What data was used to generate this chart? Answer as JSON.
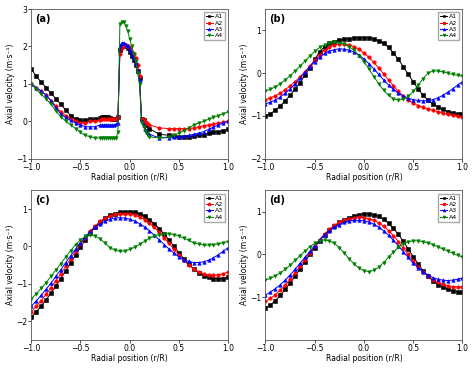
{
  "xlabel": "Radial position (r/R)",
  "ylabel": "Axial velocity (m·s⁻¹)",
  "legend_labels": [
    "A1",
    "A2",
    "A3",
    "A4"
  ],
  "colors": [
    "black",
    "red",
    "blue",
    "green"
  ],
  "markers": [
    "s",
    "o",
    "^",
    "v"
  ],
  "background": "#ffffff",
  "a_x": [
    -1.0,
    -0.95,
    -0.9,
    -0.85,
    -0.8,
    -0.75,
    -0.7,
    -0.65,
    -0.6,
    -0.55,
    -0.5,
    -0.45,
    -0.4,
    -0.35,
    -0.3,
    -0.28,
    -0.26,
    -0.24,
    -0.22,
    -0.2,
    -0.18,
    -0.16,
    -0.14,
    -0.12,
    -0.1,
    -0.08,
    -0.06,
    -0.04,
    -0.02,
    0.0,
    0.02,
    0.04,
    0.06,
    0.08,
    0.1,
    0.12,
    0.14,
    0.16,
    0.18,
    0.2,
    0.3,
    0.4,
    0.45,
    0.5,
    0.55,
    0.6,
    0.65,
    0.7,
    0.75,
    0.8,
    0.85,
    0.9,
    0.95,
    1.0
  ],
  "a_A1": [
    1.4,
    1.2,
    1.05,
    0.9,
    0.75,
    0.6,
    0.45,
    0.3,
    0.15,
    0.05,
    0.02,
    0.02,
    0.05,
    0.05,
    0.08,
    0.1,
    0.1,
    0.1,
    0.1,
    0.08,
    0.05,
    0.05,
    0.05,
    0.1,
    1.9,
    2.0,
    2.05,
    2.0,
    1.95,
    1.85,
    1.75,
    1.65,
    1.5,
    1.35,
    1.15,
    0.05,
    0.02,
    -0.05,
    -0.1,
    -0.2,
    -0.35,
    -0.38,
    -0.4,
    -0.42,
    -0.42,
    -0.42,
    -0.4,
    -0.38,
    -0.36,
    -0.33,
    -0.3,
    -0.28,
    -0.25,
    -0.22
  ],
  "a_A2": [
    1.0,
    0.9,
    0.8,
    0.7,
    0.55,
    0.4,
    0.25,
    0.15,
    0.05,
    0.0,
    -0.05,
    -0.05,
    0.0,
    0.0,
    0.02,
    0.05,
    0.05,
    0.05,
    0.05,
    0.05,
    0.05,
    0.05,
    0.05,
    0.1,
    1.8,
    1.95,
    2.0,
    2.05,
    2.0,
    1.95,
    1.85,
    1.8,
    1.7,
    1.5,
    1.2,
    0.05,
    0.02,
    -0.02,
    -0.05,
    -0.1,
    -0.18,
    -0.2,
    -0.2,
    -0.2,
    -0.2,
    -0.2,
    -0.18,
    -0.15,
    -0.12,
    -0.1,
    -0.08,
    -0.05,
    -0.03,
    -0.0
  ],
  "a_A3": [
    1.0,
    0.9,
    0.8,
    0.7,
    0.55,
    0.35,
    0.2,
    0.1,
    0.02,
    -0.05,
    -0.1,
    -0.15,
    -0.15,
    -0.15,
    -0.1,
    -0.1,
    -0.1,
    -0.1,
    -0.1,
    -0.1,
    -0.1,
    -0.1,
    -0.08,
    -0.05,
    2.0,
    2.1,
    2.1,
    2.05,
    2.0,
    1.9,
    1.8,
    1.7,
    1.55,
    1.35,
    1.1,
    0.0,
    -0.1,
    -0.2,
    -0.3,
    -0.35,
    -0.45,
    -0.44,
    -0.43,
    -0.42,
    -0.4,
    -0.38,
    -0.35,
    -0.32,
    -0.28,
    -0.22,
    -0.16,
    -0.1,
    -0.05,
    0.0
  ],
  "a_A4": [
    1.0,
    0.85,
    0.72,
    0.6,
    0.45,
    0.28,
    0.12,
    0.0,
    -0.1,
    -0.2,
    -0.3,
    -0.38,
    -0.42,
    -0.45,
    -0.45,
    -0.45,
    -0.45,
    -0.45,
    -0.45,
    -0.45,
    -0.45,
    -0.45,
    -0.45,
    -0.3,
    2.6,
    2.65,
    2.65,
    2.55,
    2.4,
    2.2,
    2.0,
    1.8,
    1.6,
    1.3,
    1.0,
    -0.05,
    -0.15,
    -0.25,
    -0.35,
    -0.42,
    -0.45,
    -0.42,
    -0.38,
    -0.32,
    -0.25,
    -0.18,
    -0.1,
    -0.05,
    -0.0,
    0.05,
    0.1,
    0.15,
    0.2,
    0.25
  ],
  "b_x": [
    -1.0,
    -0.95,
    -0.9,
    -0.85,
    -0.8,
    -0.75,
    -0.7,
    -0.65,
    -0.6,
    -0.55,
    -0.5,
    -0.45,
    -0.4,
    -0.35,
    -0.3,
    -0.25,
    -0.2,
    -0.15,
    -0.1,
    -0.05,
    0.0,
    0.05,
    0.1,
    0.15,
    0.2,
    0.25,
    0.3,
    0.35,
    0.4,
    0.45,
    0.5,
    0.55,
    0.6,
    0.65,
    0.7,
    0.75,
    0.8,
    0.85,
    0.9,
    0.95,
    1.0
  ],
  "b_A1": [
    -1.0,
    -0.95,
    -0.87,
    -0.77,
    -0.65,
    -0.52,
    -0.38,
    -0.22,
    -0.05,
    0.12,
    0.32,
    0.5,
    0.62,
    0.7,
    0.74,
    0.77,
    0.79,
    0.8,
    0.82,
    0.83,
    0.83,
    0.82,
    0.8,
    0.76,
    0.7,
    0.6,
    0.47,
    0.32,
    0.15,
    -0.03,
    -0.2,
    -0.37,
    -0.52,
    -0.63,
    -0.72,
    -0.79,
    -0.85,
    -0.9,
    -0.93,
    -0.95,
    -0.95
  ],
  "b_A2": [
    -0.62,
    -0.58,
    -0.53,
    -0.47,
    -0.39,
    -0.3,
    -0.2,
    -0.09,
    0.03,
    0.16,
    0.3,
    0.43,
    0.54,
    0.61,
    0.66,
    0.68,
    0.68,
    0.66,
    0.62,
    0.56,
    0.47,
    0.37,
    0.25,
    0.12,
    -0.02,
    -0.16,
    -0.3,
    -0.43,
    -0.54,
    -0.63,
    -0.7,
    -0.76,
    -0.8,
    -0.84,
    -0.87,
    -0.9,
    -0.93,
    -0.96,
    -0.99,
    -1.01,
    -1.02
  ],
  "b_A3": [
    -0.72,
    -0.68,
    -0.63,
    -0.56,
    -0.47,
    -0.37,
    -0.25,
    -0.12,
    0.02,
    0.15,
    0.27,
    0.38,
    0.46,
    0.52,
    0.55,
    0.57,
    0.56,
    0.54,
    0.49,
    0.42,
    0.33,
    0.22,
    0.1,
    -0.03,
    -0.16,
    -0.28,
    -0.38,
    -0.47,
    -0.54,
    -0.59,
    -0.62,
    -0.64,
    -0.65,
    -0.64,
    -0.62,
    -0.58,
    -0.52,
    -0.45,
    -0.37,
    -0.28,
    -0.2
  ],
  "b_A4": [
    -0.42,
    -0.38,
    -0.32,
    -0.25,
    -0.16,
    -0.06,
    0.05,
    0.16,
    0.28,
    0.4,
    0.51,
    0.6,
    0.66,
    0.7,
    0.72,
    0.71,
    0.68,
    0.62,
    0.53,
    0.41,
    0.27,
    0.1,
    -0.08,
    -0.25,
    -0.4,
    -0.52,
    -0.6,
    -0.63,
    -0.61,
    -0.54,
    -0.43,
    -0.28,
    -0.13,
    0.0,
    0.05,
    0.05,
    0.03,
    0.0,
    -0.03,
    -0.05,
    -0.07
  ],
  "c_x": [
    -1.0,
    -0.95,
    -0.9,
    -0.85,
    -0.8,
    -0.75,
    -0.7,
    -0.65,
    -0.6,
    -0.55,
    -0.5,
    -0.45,
    -0.4,
    -0.35,
    -0.3,
    -0.25,
    -0.2,
    -0.15,
    -0.1,
    -0.05,
    0.0,
    0.05,
    0.1,
    0.15,
    0.2,
    0.25,
    0.3,
    0.35,
    0.4,
    0.45,
    0.5,
    0.55,
    0.6,
    0.65,
    0.7,
    0.75,
    0.8,
    0.85,
    0.9,
    0.95,
    1.0
  ],
  "c_A1": [
    -1.9,
    -1.75,
    -1.6,
    -1.43,
    -1.25,
    -1.06,
    -0.86,
    -0.65,
    -0.44,
    -0.23,
    -0.02,
    0.18,
    0.37,
    0.53,
    0.66,
    0.76,
    0.83,
    0.88,
    0.91,
    0.93,
    0.93,
    0.91,
    0.87,
    0.81,
    0.72,
    0.61,
    0.48,
    0.33,
    0.17,
    0.0,
    -0.17,
    -0.33,
    -0.48,
    -0.6,
    -0.7,
    -0.78,
    -0.83,
    -0.86,
    -0.87,
    -0.86,
    -0.83
  ],
  "c_A2": [
    -1.75,
    -1.6,
    -1.45,
    -1.28,
    -1.1,
    -0.92,
    -0.73,
    -0.53,
    -0.33,
    -0.13,
    0.06,
    0.24,
    0.41,
    0.55,
    0.67,
    0.76,
    0.82,
    0.86,
    0.88,
    0.88,
    0.87,
    0.84,
    0.79,
    0.72,
    0.62,
    0.51,
    0.38,
    0.23,
    0.08,
    -0.08,
    -0.23,
    -0.37,
    -0.5,
    -0.6,
    -0.68,
    -0.73,
    -0.76,
    -0.77,
    -0.76,
    -0.73,
    -0.68
  ],
  "c_A3": [
    -1.6,
    -1.46,
    -1.31,
    -1.15,
    -0.98,
    -0.8,
    -0.62,
    -0.43,
    -0.25,
    -0.07,
    0.1,
    0.26,
    0.4,
    0.52,
    0.61,
    0.68,
    0.73,
    0.76,
    0.77,
    0.76,
    0.73,
    0.68,
    0.61,
    0.52,
    0.42,
    0.3,
    0.18,
    0.05,
    -0.07,
    -0.18,
    -0.28,
    -0.35,
    -0.4,
    -0.43,
    -0.43,
    -0.41,
    -0.37,
    -0.3,
    -0.22,
    -0.13,
    -0.03
  ],
  "c_A4": [
    -1.4,
    -1.27,
    -1.12,
    -0.97,
    -0.8,
    -0.63,
    -0.46,
    -0.28,
    -0.11,
    0.05,
    0.18,
    0.27,
    0.3,
    0.28,
    0.2,
    0.09,
    -0.03,
    -0.1,
    -0.13,
    -0.12,
    -0.08,
    -0.02,
    0.06,
    0.14,
    0.22,
    0.28,
    0.32,
    0.34,
    0.34,
    0.32,
    0.28,
    0.22,
    0.16,
    0.1,
    0.06,
    0.04,
    0.04,
    0.05,
    0.07,
    0.1,
    0.13
  ],
  "d_x": [
    -1.0,
    -0.95,
    -0.9,
    -0.85,
    -0.8,
    -0.75,
    -0.7,
    -0.65,
    -0.6,
    -0.55,
    -0.5,
    -0.45,
    -0.4,
    -0.35,
    -0.3,
    -0.25,
    -0.2,
    -0.15,
    -0.1,
    -0.05,
    0.0,
    0.05,
    0.1,
    0.15,
    0.2,
    0.25,
    0.3,
    0.35,
    0.4,
    0.45,
    0.5,
    0.55,
    0.6,
    0.65,
    0.7,
    0.75,
    0.8,
    0.85,
    0.9,
    0.95,
    1.0
  ],
  "d_A1": [
    -1.25,
    -1.18,
    -1.08,
    -0.96,
    -0.82,
    -0.67,
    -0.51,
    -0.34,
    -0.17,
    -0.0,
    0.16,
    0.32,
    0.46,
    0.58,
    0.67,
    0.75,
    0.81,
    0.86,
    0.9,
    0.93,
    0.95,
    0.95,
    0.93,
    0.89,
    0.82,
    0.73,
    0.61,
    0.47,
    0.31,
    0.13,
    -0.05,
    -0.22,
    -0.38,
    -0.51,
    -0.62,
    -0.71,
    -0.77,
    -0.82,
    -0.85,
    -0.87,
    -0.88
  ],
  "d_A2": [
    -1.1,
    -1.03,
    -0.94,
    -0.84,
    -0.72,
    -0.58,
    -0.43,
    -0.28,
    -0.12,
    0.04,
    0.2,
    0.35,
    0.48,
    0.59,
    0.68,
    0.75,
    0.8,
    0.84,
    0.86,
    0.87,
    0.86,
    0.84,
    0.8,
    0.74,
    0.66,
    0.56,
    0.44,
    0.3,
    0.15,
    0.0,
    -0.15,
    -0.29,
    -0.41,
    -0.51,
    -0.59,
    -0.65,
    -0.7,
    -0.73,
    -0.75,
    -0.76,
    -0.76
  ],
  "d_A3": [
    -0.95,
    -0.88,
    -0.8,
    -0.71,
    -0.6,
    -0.48,
    -0.35,
    -0.21,
    -0.07,
    0.07,
    0.21,
    0.34,
    0.46,
    0.56,
    0.64,
    0.7,
    0.75,
    0.78,
    0.8,
    0.8,
    0.79,
    0.76,
    0.71,
    0.64,
    0.55,
    0.45,
    0.33,
    0.2,
    0.06,
    -0.07,
    -0.2,
    -0.31,
    -0.4,
    -0.48,
    -0.54,
    -0.58,
    -0.6,
    -0.61,
    -0.6,
    -0.58,
    -0.55
  ],
  "d_A4": [
    -0.6,
    -0.56,
    -0.5,
    -0.43,
    -0.35,
    -0.25,
    -0.14,
    -0.03,
    0.08,
    0.18,
    0.26,
    0.32,
    0.34,
    0.32,
    0.26,
    0.16,
    0.03,
    -0.1,
    -0.22,
    -0.32,
    -0.38,
    -0.4,
    -0.37,
    -0.3,
    -0.19,
    -0.06,
    0.06,
    0.17,
    0.25,
    0.3,
    0.32,
    0.32,
    0.3,
    0.27,
    0.23,
    0.18,
    0.13,
    0.08,
    0.03,
    -0.02,
    -0.06
  ],
  "ylim_a": [
    -1.0,
    3.0
  ],
  "ylim_b": [
    -2.0,
    1.5
  ],
  "ylim_c": [
    -2.5,
    1.5
  ],
  "ylim_d": [
    -2.0,
    1.5
  ],
  "yticks_a": [
    -1,
    0,
    1,
    2,
    3
  ],
  "yticks_b": [
    -2,
    -1,
    0,
    1
  ],
  "yticks_c": [
    -2,
    -1,
    0,
    1
  ],
  "yticks_d": [
    -1,
    0,
    1
  ]
}
